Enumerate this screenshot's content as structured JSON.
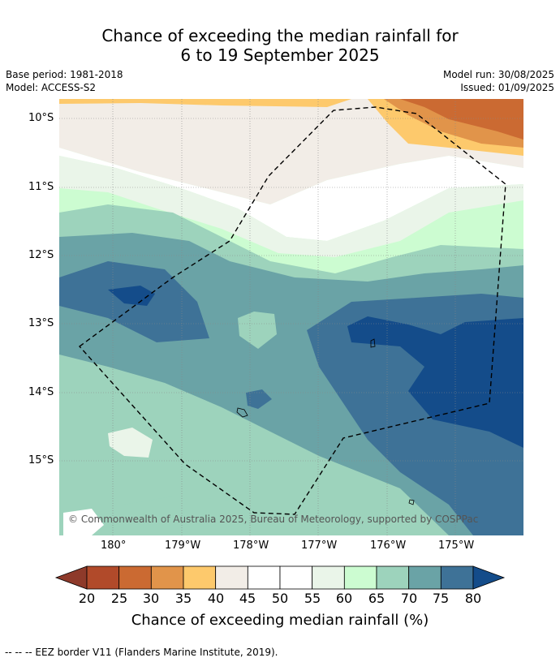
{
  "title": {
    "line1": "Chance of exceeding the median rainfall for",
    "line2": "6 to 19 September 2025"
  },
  "meta": {
    "base_period": "Base period: 1981-2018",
    "model": "Model: ACCESS-S2",
    "model_run": "Model run: 30/08/2025",
    "issued": "Issued: 01/09/2025"
  },
  "map": {
    "copyright": "© Commonwealth of Australia 2025, Bureau of Meteorology, supported by COSPPac",
    "lat_labels": [
      "10°S",
      "11°S",
      "12°S",
      "13°S",
      "14°S",
      "15°S"
    ],
    "lon_labels": [
      "180°",
      "179°W",
      "178°W",
      "177°W",
      "176°W",
      "175°W"
    ],
    "legend_line": "--  --  -- EEZ border V11 (Flanders Marine Institute, 2019)."
  },
  "colorbar": {
    "title": "Chance of exceeding median rainfall (%)",
    "ticks": [
      "20",
      "25",
      "30",
      "35",
      "40",
      "45",
      "50",
      "55",
      "60",
      "65",
      "70",
      "75",
      "80"
    ],
    "colors": [
      "#8e3a2a",
      "#b14a2a",
      "#cb6a32",
      "#e1944a",
      "#fdc96c",
      "#f2ede7",
      "#ffffff",
      "#ffffff",
      "#eaf5e9",
      "#ccfcd1",
      "#9dd3bc",
      "#6aa3a6",
      "#3e7297",
      "#144c8a"
    ]
  }
}
